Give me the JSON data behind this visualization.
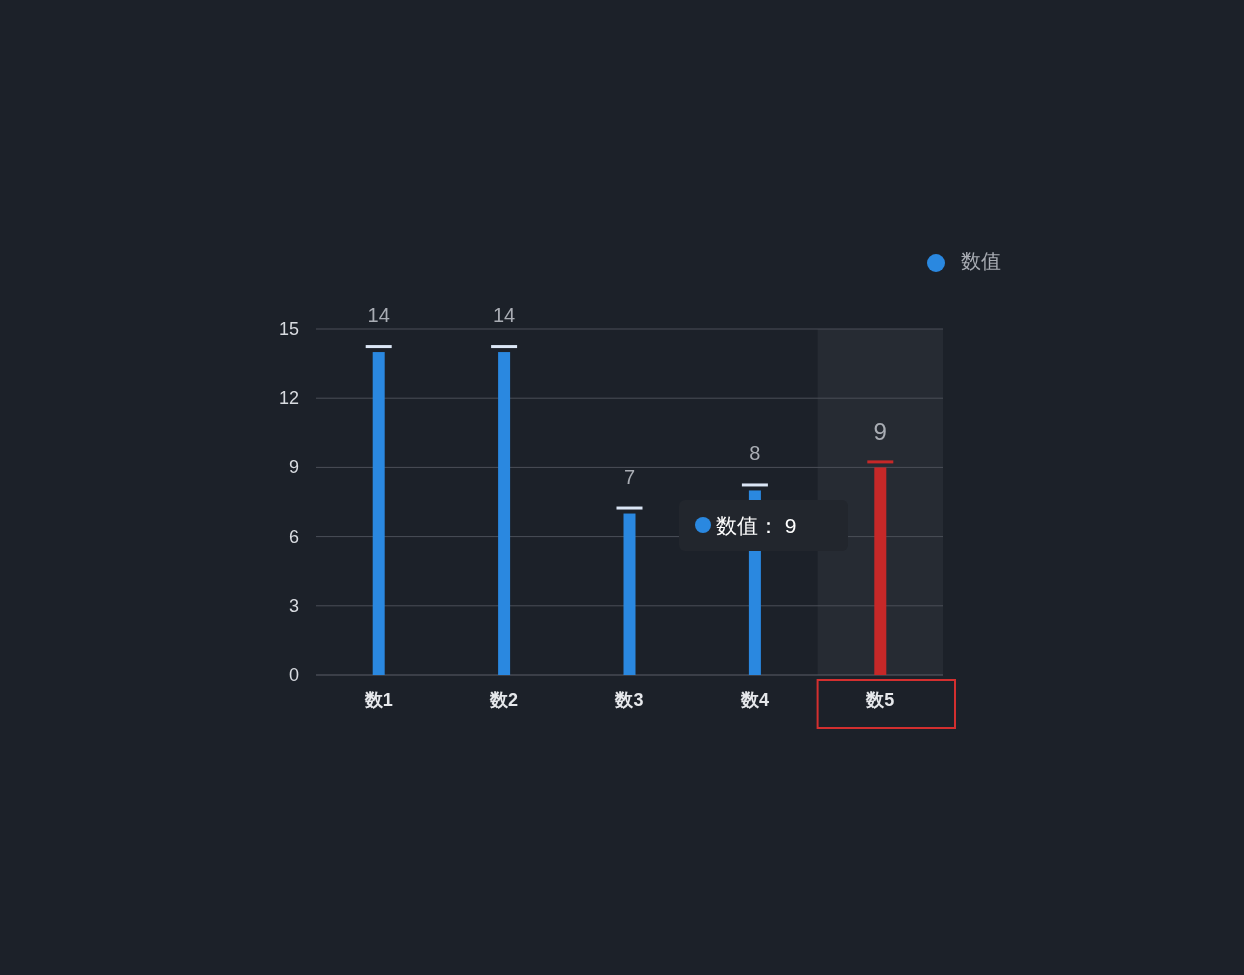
{
  "chart_data": {
    "type": "bar",
    "categories": [
      "数1",
      "数2",
      "数3",
      "数4",
      "数5"
    ],
    "series": [
      {
        "name": "数值",
        "color": "#2a88e0",
        "colors": [
          "#2a88e0",
          "#2a88e0",
          "#2a88e0",
          "#2a88e0",
          "#c62828"
        ],
        "values": [
          14,
          14,
          7,
          8,
          9
        ]
      }
    ],
    "ylim": [
      0,
      15
    ],
    "yticks": [
      0,
      3,
      6,
      9,
      12,
      15
    ],
    "grid": "y",
    "legend": "top right",
    "data_labels": true,
    "bands": [
      {
        "axis": "x",
        "from": "数5",
        "to": "数5",
        "color": "#262b33"
      }
    ],
    "annotations": [
      "数值：  9"
    ]
  }
}
